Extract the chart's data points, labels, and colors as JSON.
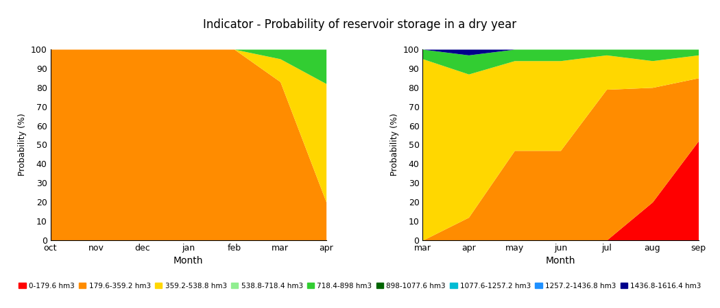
{
  "title": "Indicator - Probability of reservoir storage in a dry year",
  "ylabel": "Probability (%)",
  "xlabel": "Month",
  "colors": {
    "c0": "#ff0000",
    "c1": "#ff8c00",
    "c2": "#ffd700",
    "c3": "#90ee90",
    "c4": "#32cd32",
    "c5": "#006400",
    "c6": "#00bcd4",
    "c7": "#1e90ff",
    "c8": "#00008b"
  },
  "legend_labels": [
    "0-179.6 hm3",
    "179.6-359.2 hm3",
    "359.2-538.8 hm3",
    "538.8-718.4 hm3",
    "718.4-898 hm3",
    "898-1077.6 hm3",
    "1077.6-1257.2 hm3",
    "1257.2-1436.8 hm3",
    "1436.8-1616.4 hm3"
  ],
  "left": {
    "months": [
      "oct",
      "nov",
      "dec",
      "jan",
      "feb",
      "mar",
      "apr"
    ],
    "data": {
      "c0": [
        0,
        0,
        0,
        0,
        0,
        0,
        0
      ],
      "c1": [
        100,
        100,
        100,
        100,
        100,
        83,
        20
      ],
      "c2": [
        0,
        0,
        0,
        0,
        0,
        12,
        62
      ],
      "c3": [
        0,
        0,
        0,
        0,
        0,
        0,
        0
      ],
      "c4": [
        0,
        0,
        0,
        0,
        0,
        5,
        18
      ],
      "c5": [
        0,
        0,
        0,
        0,
        0,
        0,
        0
      ],
      "c6": [
        0,
        0,
        0,
        0,
        0,
        0,
        0
      ],
      "c7": [
        0,
        0,
        0,
        0,
        0,
        0,
        0
      ],
      "c8": [
        0,
        0,
        0,
        0,
        0,
        0,
        0
      ]
    }
  },
  "right": {
    "months": [
      "mar",
      "apr",
      "may",
      "jun",
      "jul",
      "aug",
      "sep"
    ],
    "data": {
      "c0": [
        0,
        0,
        0,
        0,
        0,
        20,
        52
      ],
      "c1": [
        0,
        12,
        47,
        47,
        79,
        60,
        33
      ],
      "c2": [
        95,
        75,
        47,
        47,
        18,
        14,
        12
      ],
      "c3": [
        0,
        0,
        0,
        0,
        0,
        0,
        0
      ],
      "c4": [
        5,
        10,
        6,
        6,
        3,
        6,
        3
      ],
      "c5": [
        0,
        0,
        0,
        0,
        0,
        0,
        0
      ],
      "c6": [
        0,
        0,
        0,
        0,
        0,
        0,
        0
      ],
      "c7": [
        0,
        0,
        0,
        0,
        0,
        0,
        0
      ],
      "c8": [
        0,
        3,
        0,
        0,
        0,
        0,
        0
      ]
    }
  }
}
